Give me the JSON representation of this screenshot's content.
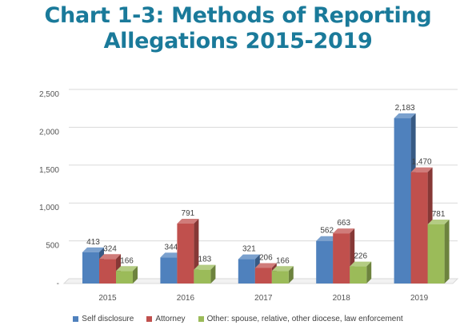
{
  "title_line1": "Chart 1-3: Methods of Reporting",
  "title_line2": "Allegations 2015-2019",
  "chart_data": {
    "type": "bar",
    "style": "3d-clustered-column",
    "categories": [
      "2015",
      "2016",
      "2017",
      "2018",
      "2019"
    ],
    "series": [
      {
        "name": "Self disclosure",
        "values": [
          413,
          344,
          321,
          562,
          2183
        ],
        "color": "#4f81bd"
      },
      {
        "name": "Attorney",
        "values": [
          324,
          791,
          206,
          663,
          1470
        ],
        "color": "#c0504d"
      },
      {
        "name": "Other: spouse, relative, other diocese, law enforcement",
        "values": [
          166,
          183,
          166,
          226,
          781
        ],
        "color": "#9bbb59"
      }
    ],
    "data_labels": [
      [
        "413",
        "344",
        "321",
        "562",
        "2,183"
      ],
      [
        "324",
        "791",
        "206",
        "663",
        "1,470"
      ],
      [
        "166",
        "183",
        "166",
        "226",
        "781"
      ]
    ],
    "y_ticks": [
      "-",
      "500",
      "1,000",
      "1,500",
      "2,000",
      "2,500"
    ],
    "y_tick_values": [
      0,
      500,
      1000,
      1500,
      2000,
      2500
    ],
    "ylim": [
      0,
      2500
    ],
    "grid": true,
    "legend_position": "bottom"
  }
}
